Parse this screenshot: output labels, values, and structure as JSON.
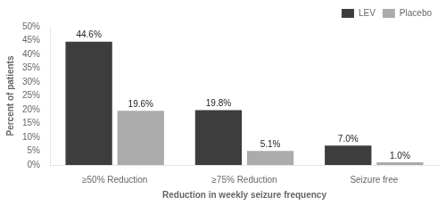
{
  "chart_data": {
    "type": "bar",
    "categories": [
      "≥50% Reduction",
      "≥75% Reduction",
      "Seizure free"
    ],
    "series": [
      {
        "name": "LEV",
        "color": "#3d3d3d",
        "values": [
          44.6,
          19.8,
          7.0
        ],
        "value_labels": [
          "44.6%",
          "19.8%",
          "7.0%"
        ]
      },
      {
        "name": "Placebo",
        "color": "#ababab",
        "values": [
          19.6,
          5.1,
          1.0
        ],
        "value_labels": [
          "19.6%",
          "5.1%",
          "1.0%"
        ]
      }
    ],
    "xlabel": "Reduction in weekly seizure frequency",
    "ylabel": "Percent of patients",
    "ylim": [
      0,
      50
    ],
    "yticks": [
      {
        "value": 0,
        "label": "0%"
      },
      {
        "value": 5,
        "label": "5%"
      },
      {
        "value": 10,
        "label": "10%"
      },
      {
        "value": 15,
        "label": "15%"
      },
      {
        "value": 20,
        "label": "20%"
      },
      {
        "value": 25,
        "label": "25%"
      },
      {
        "value": 30,
        "label": "30%"
      },
      {
        "value": 35,
        "label": "35%"
      },
      {
        "value": 40,
        "label": "40%"
      },
      {
        "value": 45,
        "label": "45%"
      },
      {
        "value": 50,
        "label": "50%"
      }
    ],
    "grid": false,
    "legend": "upper right",
    "data_labels": true
  }
}
